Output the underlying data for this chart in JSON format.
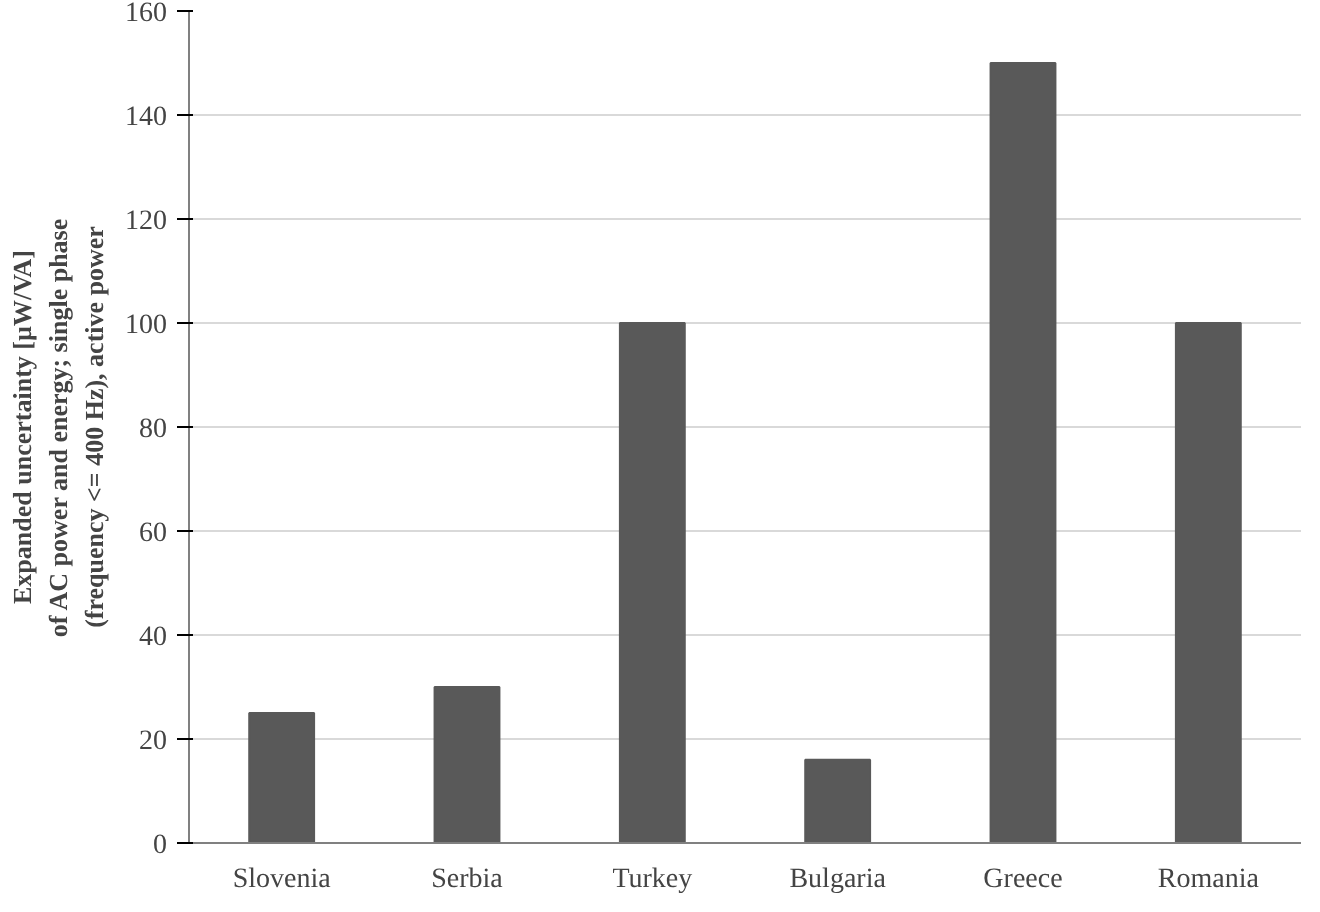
{
  "chart_data": {
    "type": "bar",
    "ylabel": "Expanded uncertainty [µW/VA]\nof AC power and energy; single phase\n(frequency <= 400 Hz), active power",
    "categories": [
      "Slovenia",
      "Serbia",
      "Turkey",
      "Bulgaria",
      "Greece",
      "Romania"
    ],
    "values": [
      25,
      30,
      100,
      16,
      150,
      100
    ],
    "color": "#595959",
    "ylim": [
      0,
      160
    ],
    "yticks": [
      0,
      20,
      40,
      60,
      80,
      100,
      120,
      140,
      160
    ],
    "grid": "y"
  }
}
